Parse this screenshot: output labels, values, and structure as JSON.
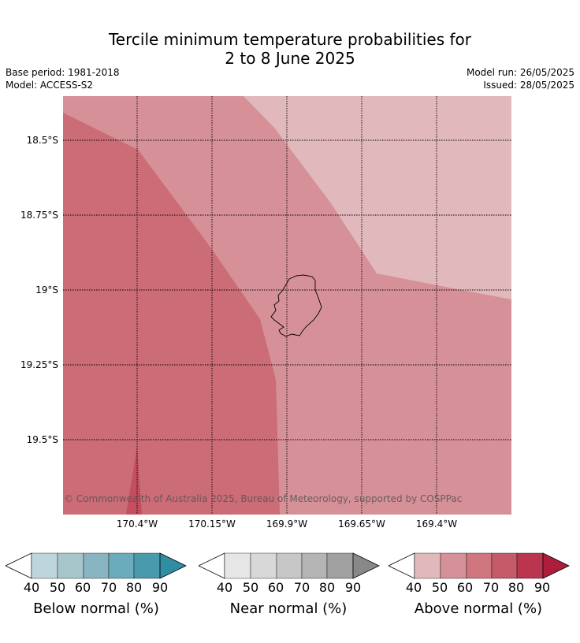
{
  "title_line1": "Tercile minimum temperature probabilities for",
  "title_line2": "2 to 8 June 2025",
  "base_period": "Base period: 1981-2018",
  "model": "Model: ACCESS-S2",
  "model_run": "Model run: 26/05/2025",
  "issued": "Issued: 28/05/2025",
  "credit": "© Commonwealth of Australia 2025, Bureau of Meteorology, supported by COSPPac",
  "lat_labels": [
    "18.5°S",
    "18.75°S",
    "19°S",
    "19.25°S",
    "19.5°S"
  ],
  "lon_labels": [
    "170.4°W",
    "170.15°W",
    "169.9°W",
    "169.65°W",
    "169.4°W"
  ],
  "colorbars": {
    "below": {
      "label": "Below normal (%)",
      "ticks": [
        "40",
        "50",
        "60",
        "70",
        "80",
        "90"
      ],
      "colors": [
        "#bfd5dc",
        "#a6c6cc",
        "#88b5c1",
        "#6aacbb",
        "#4a9aad",
        "#2f8ea4"
      ]
    },
    "near": {
      "label": "Near normal (%)",
      "ticks": [
        "40",
        "50",
        "60",
        "70",
        "80",
        "90"
      ],
      "colors": [
        "#e6e6e6",
        "#d8d8d8",
        "#c7c7c7",
        "#b4b4b4",
        "#a0a0a0",
        "#888888"
      ]
    },
    "above": {
      "label": "Above normal (%)",
      "ticks": [
        "40",
        "50",
        "60",
        "70",
        "80",
        "90"
      ],
      "colors": [
        "#e1b8bc",
        "#d69097",
        "#d0767f",
        "#c55a68",
        "#bb3450",
        "#ad1e3c"
      ]
    }
  },
  "map_legend_colors": {
    "above_40_50": "#e1b8bc",
    "above_50_60": "#d69097",
    "above_60_70": "#cb6c76",
    "above_70_80": "#c34e5f"
  }
}
